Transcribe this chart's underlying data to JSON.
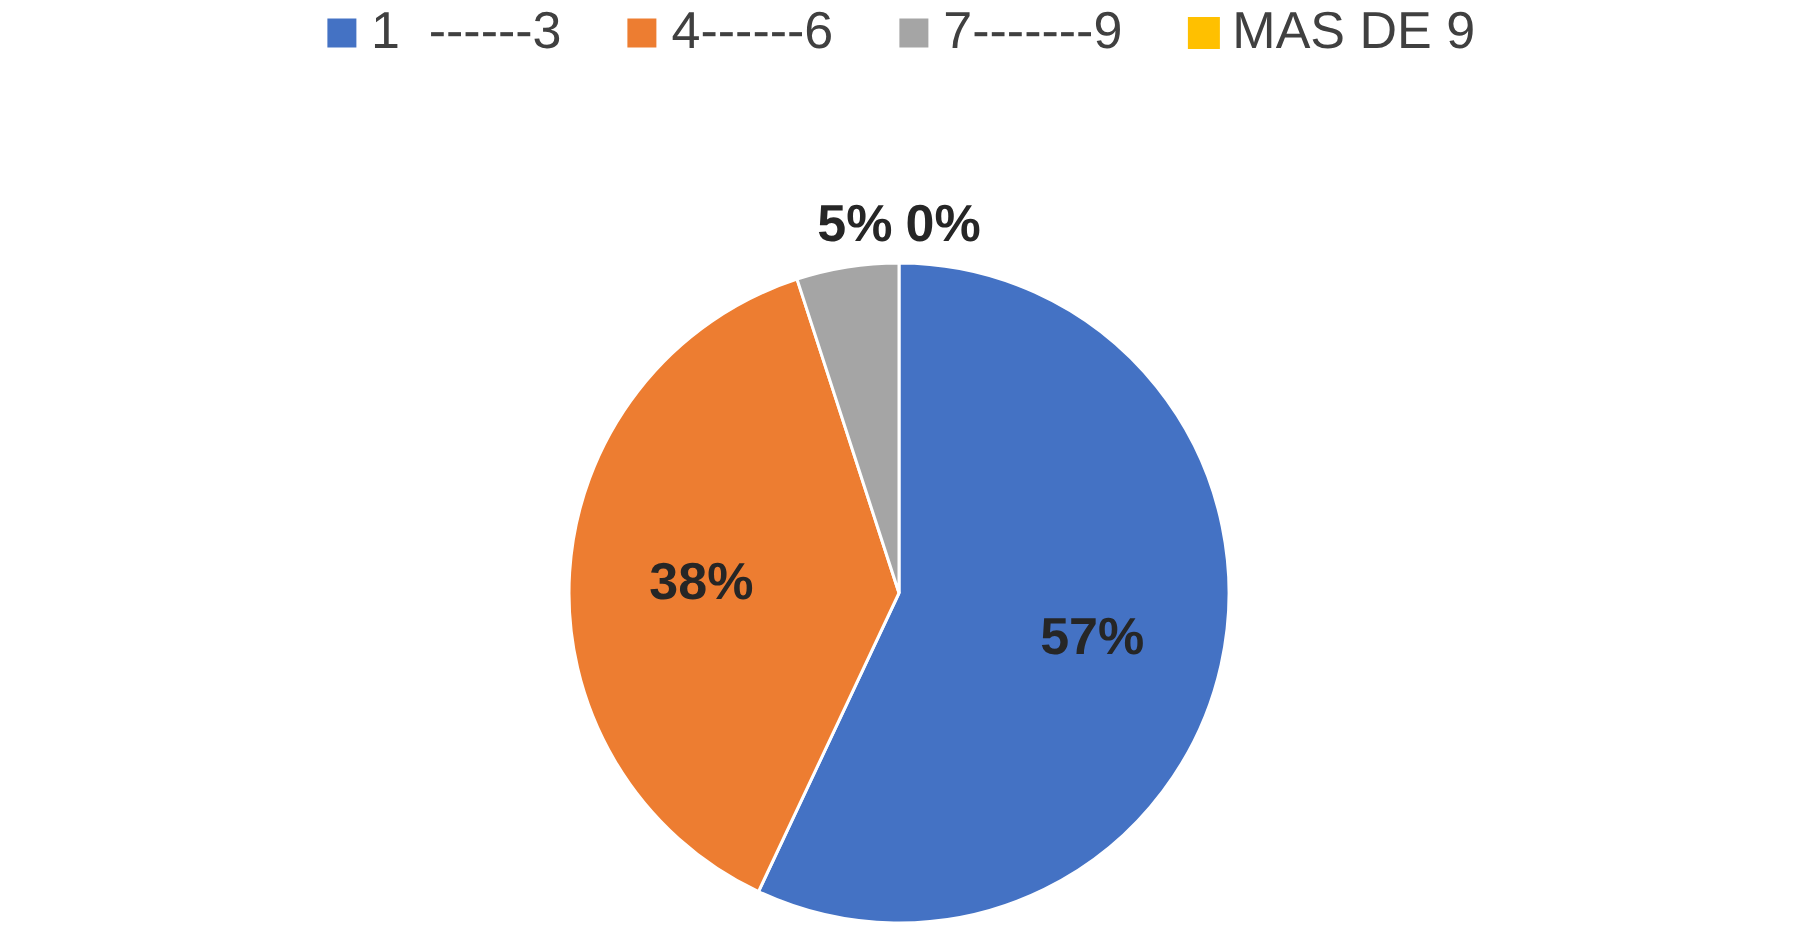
{
  "chart_data": {
    "type": "pie",
    "categories": [
      "1  ------3",
      "4------6",
      "7-------9",
      "MAS DE 9"
    ],
    "values": [
      57,
      38,
      5,
      0
    ],
    "colors": [
      "#4472c4",
      "#ed7d31",
      "#a5a5a5",
      "#ffc000"
    ],
    "value_labels": [
      "57%",
      "38%",
      "5%",
      "0%"
    ],
    "legend": "top"
  }
}
